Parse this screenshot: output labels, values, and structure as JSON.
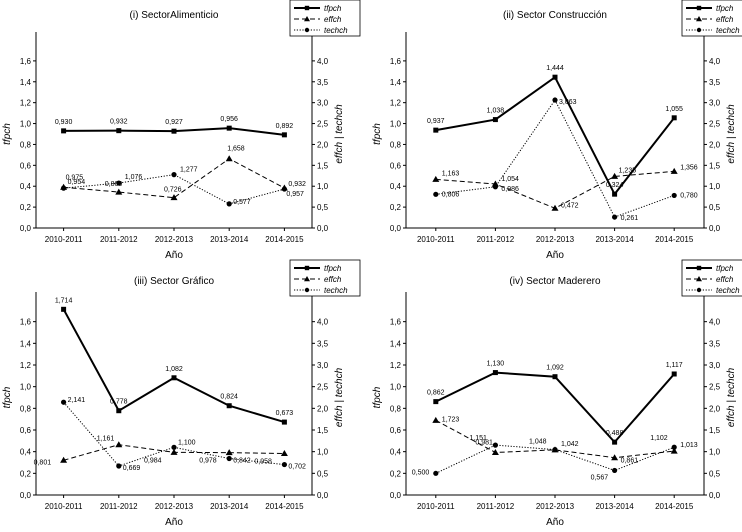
{
  "chart_data": [
    {
      "type": "line",
      "title": "(i) SectorAlimenticio",
      "xlabel": "Año",
      "ylabel": "tfpch",
      "y2label": "effch  |  techch",
      "categories": [
        "2010-2011",
        "2011-2012",
        "2012-2013",
        "2013-2014",
        "2014-2015"
      ],
      "ylim": [
        0,
        1.8
      ],
      "yticks": [
        "0,0",
        "0,2",
        "0,4",
        "0,6",
        "0,8",
        "1,0",
        "1,2",
        "1,4",
        "1,6"
      ],
      "y2lim": [
        0,
        4.5
      ],
      "y2ticks": [
        "0,0",
        "0,5",
        "1,0",
        "1,5",
        "2,0",
        "2,5",
        "3,0",
        "3,5",
        "4,0"
      ],
      "legend_position": "top-right",
      "series": [
        {
          "name": "tfpch",
          "axis": "left",
          "style": "solid",
          "marker": "square",
          "values": [
            0.93,
            0.932,
            0.927,
            0.956,
            0.892
          ],
          "labels": [
            "0,930",
            "0,932",
            "0,927",
            "0,956",
            "0,892"
          ]
        },
        {
          "name": "effch",
          "axis": "right",
          "style": "dashed",
          "marker": "triangle",
          "values": [
            0.975,
            0.86,
            0.726,
            1.658,
            0.957
          ],
          "labels": [
            "0,975",
            "0,860",
            "0,726",
            "1,658",
            "0,957"
          ]
        },
        {
          "name": "techch",
          "axis": "right",
          "style": "dotted",
          "marker": "circle",
          "values": [
            0.954,
            1.076,
            1.277,
            0.577,
            0.932
          ],
          "labels": [
            "0,954",
            "1,076",
            "1,277",
            "0,577",
            "0,932"
          ]
        }
      ]
    },
    {
      "type": "line",
      "title": "(ii) Sector Construcción",
      "xlabel": "Año",
      "ylabel": "tfpch",
      "y2label": "effch  |  techch",
      "categories": [
        "2010-2011",
        "2011-2012",
        "2012-2013",
        "2013-2014",
        "2014-2015"
      ],
      "ylim": [
        0,
        1.8
      ],
      "yticks": [
        "0,0",
        "0,2",
        "0,4",
        "0,6",
        "0,8",
        "1,0",
        "1,2",
        "1,4",
        "1,6"
      ],
      "y2lim": [
        0,
        4.5
      ],
      "y2ticks": [
        "0,0",
        "0,5",
        "1,0",
        "1,5",
        "2,0",
        "2,5",
        "3,0",
        "3,5",
        "4,0"
      ],
      "legend_position": "top-right",
      "series": [
        {
          "name": "tfpch",
          "axis": "left",
          "style": "solid",
          "marker": "square",
          "values": [
            0.937,
            1.038,
            1.444,
            0.324,
            1.055
          ],
          "labels": [
            "0,937",
            "1,038",
            "1,444",
            "0,324",
            "1,055"
          ]
        },
        {
          "name": "effch",
          "axis": "right",
          "style": "dashed",
          "marker": "triangle",
          "values": [
            1.163,
            1.054,
            0.472,
            1.235,
            1.356
          ],
          "labels": [
            "1,163",
            "1,054",
            "0,472",
            "1,235",
            "1,356"
          ]
        },
        {
          "name": "techch",
          "axis": "right",
          "style": "dotted",
          "marker": "circle",
          "values": [
            0.806,
            0.986,
            3.063,
            0.261,
            0.78
          ],
          "labels": [
            "0,806",
            "0,986",
            "3,063",
            "0,261",
            "0,780"
          ]
        }
      ]
    },
    {
      "type": "line",
      "title": "(iii) Sector Gráfico",
      "xlabel": "Año",
      "ylabel": "tfpch",
      "y2label": "effch  |  techch",
      "categories": [
        "2010-2011",
        "2011-2012",
        "2012-2013",
        "2013-2014",
        "2014-2015"
      ],
      "ylim": [
        0,
        1.8
      ],
      "yticks": [
        "0,0",
        "0,2",
        "0,4",
        "0,6",
        "0,8",
        "1,0",
        "1,2",
        "1,4",
        "1,6"
      ],
      "y2lim": [
        0,
        4.5
      ],
      "y2ticks": [
        "0,0",
        "0,5",
        "1,0",
        "1,5",
        "2,0",
        "2,5",
        "3,0",
        "3,5",
        "4,0"
      ],
      "legend_position": "top-right",
      "series": [
        {
          "name": "tfpch",
          "axis": "left",
          "style": "solid",
          "marker": "square",
          "values": [
            1.714,
            0.778,
            1.082,
            0.824,
            0.673
          ],
          "labels": [
            "1,714",
            "0,778",
            "1,082",
            "0,824",
            "0,673"
          ]
        },
        {
          "name": "effch",
          "axis": "right",
          "style": "dashed",
          "marker": "triangle",
          "values": [
            0.801,
            1.161,
            0.984,
            0.978,
            0.958
          ],
          "labels": [
            "0,801",
            "1,161",
            "0,984",
            "0,978",
            "0,958"
          ]
        },
        {
          "name": "techch",
          "axis": "right",
          "style": "dotted",
          "marker": "circle",
          "values": [
            2.141,
            0.669,
            1.1,
            0.842,
            0.702
          ],
          "labels": [
            "2,141",
            "0,669",
            "1,100",
            "0,842",
            "0,702"
          ]
        }
      ]
    },
    {
      "type": "line",
      "title": "(iv) Sector Maderero",
      "xlabel": "Año",
      "ylabel": "tfpch",
      "y2label": "effch  |  techch",
      "categories": [
        "2010-2011",
        "2011-2012",
        "2012-2013",
        "2013-2014",
        "2014-2015"
      ],
      "ylim": [
        0,
        1.8
      ],
      "yticks": [
        "0,0",
        "0,2",
        "0,4",
        "0,6",
        "0,8",
        "1,0",
        "1,2",
        "1,4",
        "1,6"
      ],
      "y2lim": [
        0,
        4.5
      ],
      "y2ticks": [
        "0,0",
        "0,5",
        "1,0",
        "1,5",
        "2,0",
        "2,5",
        "3,0",
        "3,5",
        "4,0"
      ],
      "legend_position": "top-right",
      "series": [
        {
          "name": "tfpch",
          "axis": "left",
          "style": "solid",
          "marker": "square",
          "values": [
            0.862,
            1.13,
            1.092,
            0.488,
            1.117
          ],
          "labels": [
            "0,862",
            "1,130",
            "1,092",
            "0,488",
            "1,117"
          ]
        },
        {
          "name": "effch",
          "axis": "right",
          "style": "dashed",
          "marker": "triangle",
          "values": [
            1.723,
            0.981,
            1.042,
            0.861,
            1.013
          ],
          "labels": [
            "1,723",
            "0,981",
            "1,042",
            "0,861",
            "1,013"
          ]
        },
        {
          "name": "techch",
          "axis": "right",
          "style": "dotted",
          "marker": "circle",
          "values": [
            0.5,
            1.151,
            1.048,
            0.567,
            1.102
          ],
          "labels": [
            "0,500",
            "1,151",
            "1,048",
            "0,567",
            "1,102"
          ]
        }
      ]
    }
  ]
}
